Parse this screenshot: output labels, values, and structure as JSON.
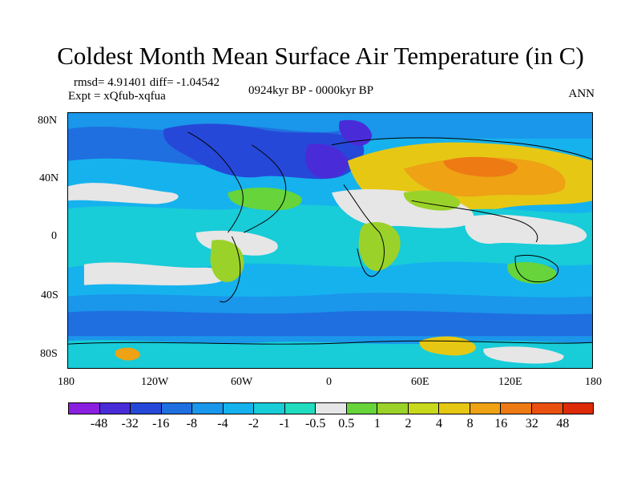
{
  "title": "Coldest Month Mean Surface Air Temperature (in C)",
  "stats": "rmsd= 4.91401 diff= -1.04542",
  "experiment": "Expt = xQfub-xqfua",
  "period": "0924kyr BP - 0000kyr BP",
  "season": "ANN",
  "lat_ticks": [
    "80N",
    "40N",
    "0",
    "40S",
    "80S"
  ],
  "lon_ticks": [
    "180",
    "120W",
    "60W",
    "0",
    "60E",
    "120E",
    "180"
  ],
  "colorbar": {
    "labels": [
      "-48",
      "-32",
      "-16",
      "-8",
      "-4",
      "-2",
      "-1",
      "-0.5",
      "0.5",
      "1",
      "2",
      "4",
      "8",
      "16",
      "32",
      "48"
    ],
    "colors": [
      "#8a1fe0",
      "#4a2bd8",
      "#2648d8",
      "#1f6fe0",
      "#1a96ea",
      "#16b2ee",
      "#18ccd8",
      "#22dcc0",
      "#e6e6e6",
      "#66d43a",
      "#9ad22a",
      "#c8d81c",
      "#e6c814",
      "#eea214",
      "#ee7a14",
      "#ea5010",
      "#dd2b08"
    ]
  }
}
